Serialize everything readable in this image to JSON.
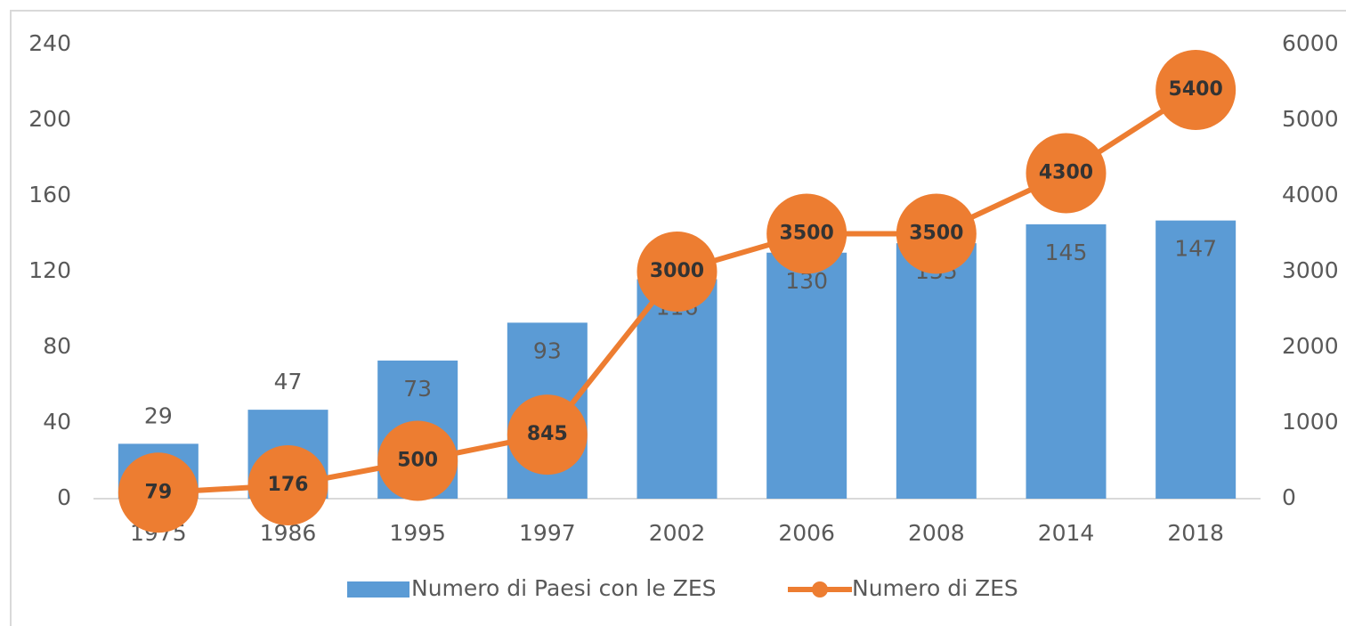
{
  "chart_data": {
    "type": "bar",
    "categories": [
      "1975",
      "1986",
      "1995",
      "1997",
      "2002",
      "2006",
      "2008",
      "2014",
      "2018"
    ],
    "series": [
      {
        "name": "Numero di Paesi con le ZES",
        "type": "bar",
        "color": "#5b9bd5",
        "values": [
          29,
          47,
          73,
          93,
          116,
          130,
          135,
          145,
          147
        ]
      },
      {
        "name": "Numero di ZES",
        "type": "line",
        "axis": "y2",
        "color": "#ed7d31",
        "values": [
          79,
          176,
          500,
          845,
          3000,
          3500,
          3500,
          4300,
          5400
        ]
      }
    ],
    "ylim": [
      0,
      240
    ],
    "yticks": [
      0,
      40,
      80,
      120,
      160,
      200,
      240
    ],
    "y2lim": [
      0,
      6000
    ],
    "y2ticks": [
      0,
      1000,
      2000,
      3000,
      4000,
      5000,
      6000
    ],
    "grid": false,
    "legend": "bottom"
  }
}
